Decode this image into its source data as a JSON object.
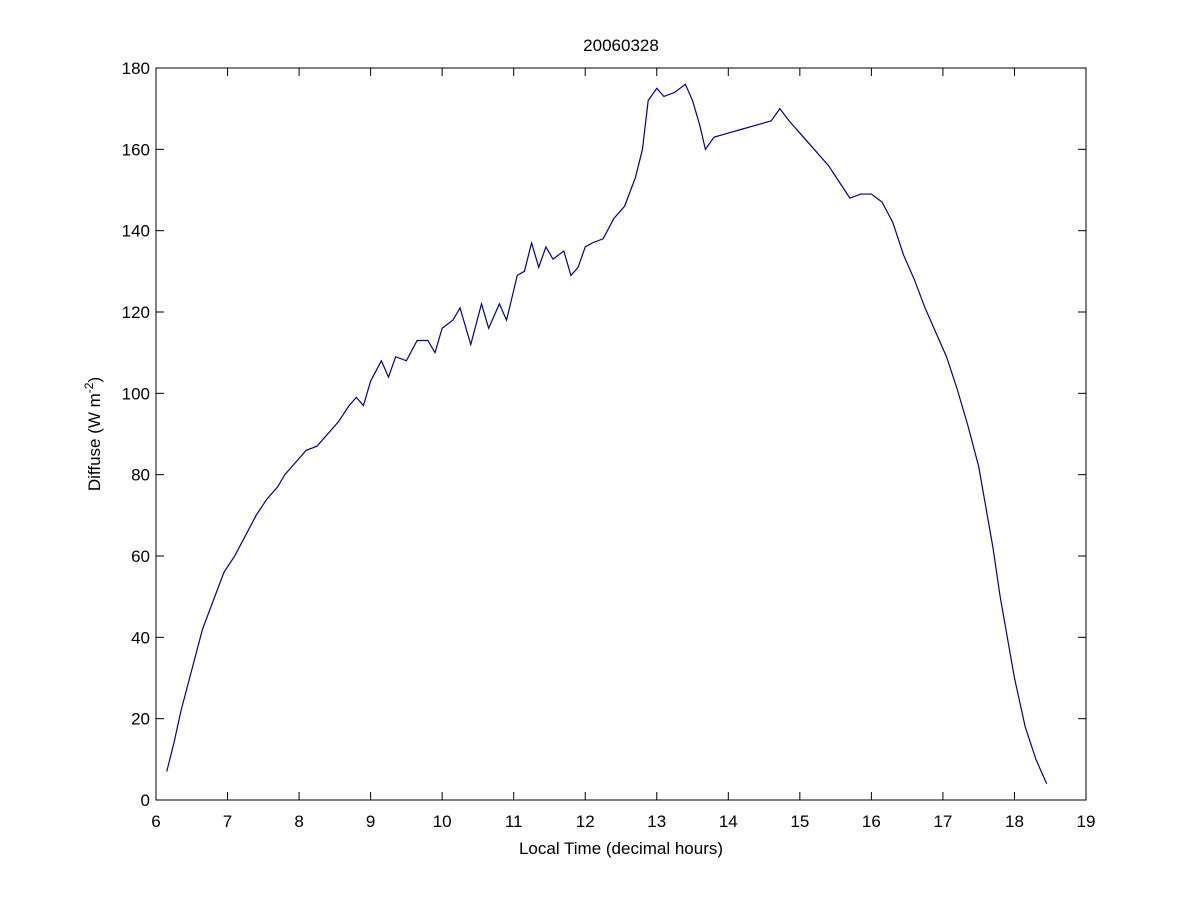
{
  "chart_data": {
    "type": "line",
    "title": "20060328",
    "xlabel": "Local Time (decimal hours)",
    "ylabel": [
      "Diffuse (W m",
      "-2",
      ")"
    ],
    "x": [
      6.15,
      6.25,
      6.35,
      6.5,
      6.65,
      6.8,
      6.95,
      7.1,
      7.25,
      7.4,
      7.55,
      7.7,
      7.8,
      7.95,
      8.1,
      8.25,
      8.4,
      8.55,
      8.7,
      8.8,
      8.9,
      9.0,
      9.15,
      9.25,
      9.35,
      9.5,
      9.65,
      9.8,
      9.9,
      10.0,
      10.15,
      10.25,
      10.3,
      10.4,
      10.55,
      10.65,
      10.8,
      10.9,
      11.05,
      11.15,
      11.25,
      11.35,
      11.45,
      11.55,
      11.7,
      11.8,
      11.9,
      12.0,
      12.1,
      12.25,
      12.4,
      12.55,
      12.7,
      12.8,
      12.88,
      13.0,
      13.1,
      13.25,
      13.4,
      13.5,
      13.6,
      13.68,
      13.8,
      14.0,
      14.2,
      14.4,
      14.6,
      14.72,
      14.85,
      15.0,
      15.2,
      15.4,
      15.55,
      15.7,
      15.85,
      16.0,
      16.15,
      16.3,
      16.45,
      16.6,
      16.75,
      16.9,
      17.05,
      17.2,
      17.35,
      17.5,
      17.6,
      17.7,
      17.8,
      17.9,
      18.0,
      18.15,
      18.3,
      18.45
    ],
    "series": [
      {
        "color": "#00008b",
        "values": [
          7,
          14,
          22,
          32,
          42,
          49,
          56,
          60,
          65,
          70,
          74,
          77,
          80,
          83,
          86,
          87,
          90,
          93,
          97,
          99,
          97,
          103,
          108,
          104,
          109,
          108,
          113,
          113,
          110,
          116,
          118,
          121,
          118,
          112,
          122,
          116,
          122,
          118,
          129,
          130,
          137,
          131,
          136,
          133,
          135,
          129,
          131,
          136,
          137,
          138,
          143,
          146,
          153,
          160,
          172,
          175,
          173,
          174,
          176,
          172,
          166,
          160,
          163,
          164,
          165,
          166,
          167,
          170,
          167,
          164,
          160,
          156,
          152,
          148,
          149,
          149,
          147,
          142,
          134,
          128,
          121,
          115,
          109,
          101,
          92,
          82,
          72,
          62,
          50,
          40,
          30,
          18,
          10,
          4
        ]
      }
    ],
    "xlim": [
      6,
      19
    ],
    "xticks": [
      6,
      7,
      8,
      9,
      10,
      11,
      12,
      13,
      14,
      15,
      16,
      17,
      18,
      19
    ],
    "ylim": [
      0,
      180
    ],
    "yticks": [
      0,
      20,
      40,
      60,
      80,
      100,
      120,
      140,
      160,
      180
    ]
  }
}
